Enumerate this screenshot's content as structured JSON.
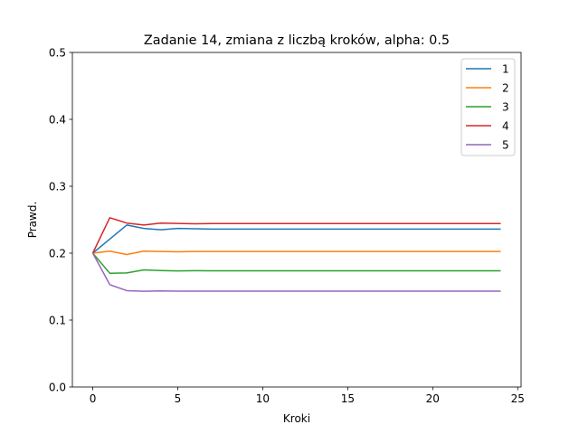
{
  "chart_data": {
    "type": "line",
    "title": "Zadanie 14, zmiana z liczbą kroków, alpha: 0.5",
    "xlabel": "Kroki",
    "ylabel": "Prawd.",
    "xlim": [
      -1.2,
      25.2
    ],
    "ylim": [
      0.0,
      0.5
    ],
    "xticks": [
      0,
      5,
      10,
      15,
      20,
      25
    ],
    "xtick_labels": [
      "0",
      "5",
      "10",
      "15",
      "20",
      "25"
    ],
    "yticks": [
      0.0,
      0.1,
      0.2,
      0.3,
      0.4,
      0.5
    ],
    "ytick_labels": [
      "0.0",
      "0.1",
      "0.2",
      "0.3",
      "0.4",
      "0.5"
    ],
    "grid": false,
    "legend_position": "top-right",
    "x": [
      0,
      1,
      2,
      3,
      4,
      5,
      6,
      7,
      8,
      9,
      10,
      11,
      12,
      13,
      14,
      15,
      16,
      17,
      18,
      19,
      20,
      21,
      22,
      23,
      24
    ],
    "series": [
      {
        "name": "1",
        "color": "#1f77b4",
        "values": [
          0.2,
          0.221,
          0.242,
          0.237,
          0.235,
          0.237,
          0.2365,
          0.236,
          0.236,
          0.236,
          0.236,
          0.236,
          0.236,
          0.236,
          0.236,
          0.236,
          0.236,
          0.236,
          0.236,
          0.236,
          0.236,
          0.236,
          0.236,
          0.236,
          0.236
        ]
      },
      {
        "name": "2",
        "color": "#ff7f0e",
        "values": [
          0.2,
          0.203,
          0.198,
          0.203,
          0.2025,
          0.202,
          0.2025,
          0.2025,
          0.2025,
          0.2025,
          0.2025,
          0.2025,
          0.2025,
          0.2025,
          0.2025,
          0.2025,
          0.2025,
          0.2025,
          0.2025,
          0.2025,
          0.2025,
          0.2025,
          0.2025,
          0.2025,
          0.2025
        ]
      },
      {
        "name": "3",
        "color": "#2ca02c",
        "values": [
          0.2,
          0.17,
          0.1705,
          0.175,
          0.174,
          0.1735,
          0.1738,
          0.1737,
          0.1737,
          0.1737,
          0.1737,
          0.1737,
          0.1737,
          0.1737,
          0.1737,
          0.1737,
          0.1737,
          0.1737,
          0.1737,
          0.1737,
          0.1737,
          0.1737,
          0.1737,
          0.1737,
          0.1737
        ]
      },
      {
        "name": "4",
        "color": "#d62728",
        "values": [
          0.2,
          0.253,
          0.245,
          0.242,
          0.245,
          0.2445,
          0.244,
          0.2442,
          0.2442,
          0.2442,
          0.2442,
          0.2442,
          0.2442,
          0.2442,
          0.2442,
          0.2442,
          0.2442,
          0.2442,
          0.2442,
          0.2442,
          0.2442,
          0.2442,
          0.2442,
          0.2442,
          0.2442
        ]
      },
      {
        "name": "5",
        "color": "#9467bd",
        "values": [
          0.2,
          0.153,
          0.144,
          0.143,
          0.1435,
          0.1433,
          0.1433,
          0.1433,
          0.1433,
          0.1433,
          0.1433,
          0.1433,
          0.1433,
          0.1433,
          0.1433,
          0.1433,
          0.1433,
          0.1433,
          0.1433,
          0.1433,
          0.1433,
          0.1433,
          0.1433,
          0.1433,
          0.1433
        ]
      }
    ]
  }
}
